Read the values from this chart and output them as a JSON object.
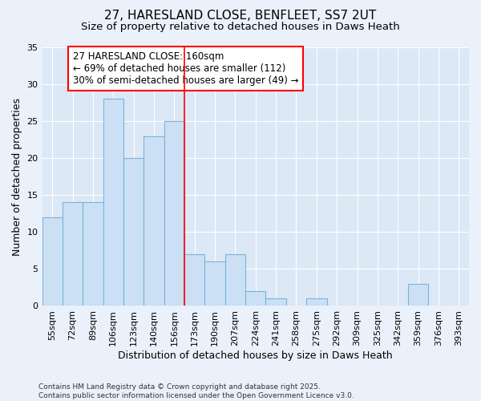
{
  "title1": "27, HARESLAND CLOSE, BENFLEET, SS7 2UT",
  "title2": "Size of property relative to detached houses in Daws Heath",
  "xlabel": "Distribution of detached houses by size in Daws Heath",
  "ylabel": "Number of detached properties",
  "categories": [
    "55sqm",
    "72sqm",
    "89sqm",
    "106sqm",
    "123sqm",
    "140sqm",
    "156sqm",
    "173sqm",
    "190sqm",
    "207sqm",
    "224sqm",
    "241sqm",
    "258sqm",
    "275sqm",
    "292sqm",
    "309sqm",
    "325sqm",
    "342sqm",
    "359sqm",
    "376sqm",
    "393sqm"
  ],
  "values": [
    12,
    14,
    14,
    28,
    20,
    23,
    25,
    7,
    6,
    7,
    2,
    1,
    0,
    1,
    0,
    0,
    0,
    0,
    3,
    0,
    0
  ],
  "bar_color": "#cce0f5",
  "bar_edge_color": "#7ab3d9",
  "reference_line_index": 6.5,
  "reference_line_color": "red",
  "annotation_box_text": "27 HARESLAND CLOSE: 160sqm\n← 69% of detached houses are smaller (112)\n30% of semi-detached houses are larger (49) →",
  "ylim": [
    0,
    35
  ],
  "yticks": [
    0,
    5,
    10,
    15,
    20,
    25,
    30,
    35
  ],
  "background_color": "#eaf1fa",
  "plot_bg_color": "#dce8f5",
  "footer": "Contains HM Land Registry data © Crown copyright and database right 2025.\nContains public sector information licensed under the Open Government Licence v3.0.",
  "title_fontsize": 11,
  "subtitle_fontsize": 9.5,
  "axis_label_fontsize": 9,
  "tick_fontsize": 8,
  "footer_fontsize": 6.5,
  "annotation_fontsize": 8.5
}
